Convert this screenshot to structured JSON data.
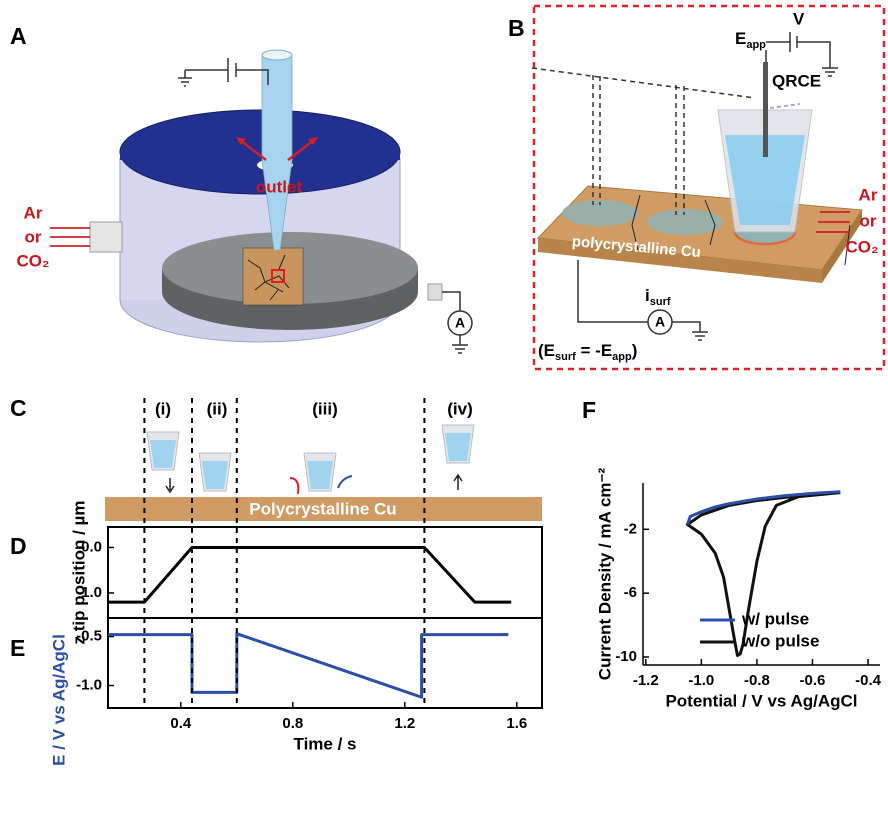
{
  "panel_labels": [
    "A",
    "B",
    "C",
    "D",
    "E",
    "F"
  ],
  "panel_a": {
    "gas": [
      "Ar",
      "or",
      "CO₂"
    ],
    "outlet": "outlet",
    "ammeter": "A"
  },
  "panel_b": {
    "e_app": {
      "main": "E",
      "sub": "app"
    },
    "v": "V",
    "qrce": "QRCE",
    "gas": [
      "Ar",
      "or",
      "CO₂"
    ],
    "substrate": "polycrystalline Cu",
    "i_surf": {
      "main": "i",
      "sub": "surf"
    },
    "ammeter": "A",
    "relation_parts": [
      "(E",
      "surf",
      " = -E",
      "app",
      ")"
    ]
  },
  "panel_c": {
    "phases": [
      "(i)",
      "(ii)",
      "(iii)",
      "(iv)"
    ],
    "substrate": "Polycrystalline Cu"
  },
  "phase_boundaries": [
    0.27,
    0.44,
    0.6,
    1.27
  ],
  "chart_data": [
    {
      "type": "line",
      "ylabel": "z tip position / µm",
      "x": [
        0.14,
        0.27,
        0.44,
        1.27,
        1.45,
        1.58
      ],
      "values": [
        1.2,
        1.2,
        0,
        0,
        1.2,
        1.2
      ],
      "color": "#000000",
      "xlim": [
        0.14,
        1.69
      ],
      "ylim": [
        1.55,
        -0.45
      ],
      "yticks": [
        {
          "value": 0,
          "label": "0.0"
        },
        {
          "value": 1,
          "label": "1.0"
        }
      ]
    },
    {
      "type": "line",
      "ylabel": "E / V vs Ag/AgCl",
      "xlabel": "Time / s",
      "x": [
        0.14,
        0.44,
        0.44,
        0.6,
        0.6,
        1.26,
        1.26,
        1.57
      ],
      "values": [
        -0.48,
        -0.48,
        -1.07,
        -1.07,
        -0.47,
        -1.12,
        -0.48,
        -0.48
      ],
      "color": "#2b4fa8",
      "xlim": [
        0.14,
        1.69
      ],
      "ylim": [
        -1.23,
        -0.31
      ],
      "xticks": [
        0.4,
        0.8,
        1.2,
        1.6
      ],
      "yticks": [
        -0.5,
        {
          "value": -1,
          "label": "-1.0"
        }
      ]
    },
    {
      "type": "line",
      "ylabel": "Current Density / mA cm⁻²",
      "xlabel": "Potential / V vs Ag/AgCl",
      "series": [
        {
          "name": "w/ pulse",
          "color": "#2b4fa8",
          "x": [
            -1.05,
            -1.04,
            -1.0,
            -0.95,
            -0.9,
            -0.8,
            -0.7,
            -0.6,
            -0.5
          ],
          "values": [
            -1.7,
            -1.2,
            -0.9,
            -0.6,
            -0.4,
            -0.1,
            0.1,
            0.25,
            0.35
          ]
        },
        {
          "name": "w/o pulse",
          "color": "#111111",
          "x": [
            -0.5,
            -0.6,
            -0.7,
            -0.8,
            -0.9,
            -1.0,
            -1.05,
            -1.0,
            -0.95,
            -0.92,
            -0.9,
            -0.88,
            -0.87,
            -0.86,
            -0.85,
            -0.83,
            -0.8,
            -0.77,
            -0.73,
            -0.65,
            -0.5
          ],
          "values": [
            0.3,
            0.2,
            0.0,
            -0.2,
            -0.5,
            -1.1,
            -1.7,
            -2.3,
            -3.5,
            -5,
            -7,
            -9,
            -9.9,
            -9.8,
            -9.2,
            -7,
            -4,
            -1.8,
            -0.5,
            0.05,
            0.3
          ]
        }
      ],
      "xlim": [
        -1.21,
        -0.357
      ],
      "ylim": [
        -10.5,
        0.9
      ],
      "xticks": [
        -1.2,
        {
          "value": -1,
          "label": "-1.0"
        },
        -0.8,
        -0.6,
        -0.4
      ],
      "yticks": [
        -2,
        -6,
        -10
      ]
    }
  ]
}
